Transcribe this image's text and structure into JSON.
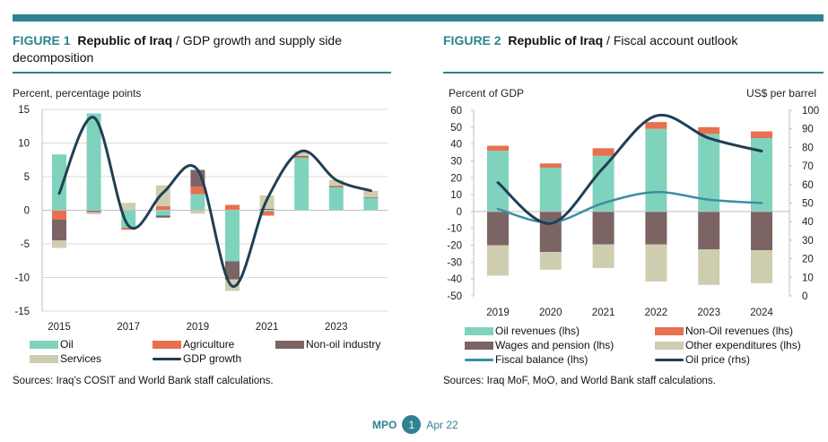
{
  "colors": {
    "accent": "#2e8291",
    "oil": "#7fd3bd",
    "agriculture": "#e8704f",
    "nonoil": "#7b6463",
    "services": "#cfcdb0",
    "gdp": "#1f3f55",
    "fiscal": "#3b8fa3",
    "oilprice": "#1f3f55"
  },
  "figure1": {
    "label": "FIGURE 1",
    "country": "Republic of Iraq",
    "title": "/ GDP growth and supply side decomposition",
    "source": "Sources: Iraq’s COSIT and World Bank staff calculations."
  },
  "figure2": {
    "label": "FIGURE 2",
    "country": "Republic of Iraq",
    "title": "/ Fiscal account outlook",
    "source": "Sources: Iraq MoF, MoO, and World Bank staff calculations."
  },
  "footer": {
    "brand": "MPO",
    "page": "1",
    "date": "Apr 22"
  },
  "chart_data": [
    {
      "type": "bar",
      "stacked": true,
      "ylabel": "Percent, percentage points",
      "ylim": [
        -15,
        15
      ],
      "yticks": [
        -15,
        -10,
        -5,
        0,
        5,
        10,
        15
      ],
      "grid": true,
      "legend": "bottom",
      "categories": [
        "2015",
        "2016",
        "2017",
        "2018",
        "2019",
        "2020",
        "2021",
        "2022",
        "2023",
        "2024"
      ],
      "xtick_labels": [
        "2015",
        "2017",
        "2019",
        "2021",
        "2023"
      ],
      "series": [
        {
          "name": "Oil",
          "kind": "bar",
          "color": "#7fd3bd",
          "values": [
            8.3,
            14.4,
            -2.6,
            -0.8,
            2.4,
            -7.6,
            -0.2,
            7.8,
            3.4,
            1.8
          ]
        },
        {
          "name": "Agriculture",
          "kind": "bar",
          "color": "#e8704f",
          "values": [
            -1.4,
            -0.1,
            -0.3,
            0.6,
            1.1,
            0.8,
            -0.6,
            0.2,
            0.1,
            0.0
          ]
        },
        {
          "name": "Non-oil industry",
          "kind": "bar",
          "color": "#7b6463",
          "values": [
            -3.1,
            -0.2,
            0.0,
            -0.3,
            2.5,
            -2.7,
            0.2,
            0.1,
            0.1,
            0.1
          ]
        },
        {
          "name": "Services",
          "kind": "bar",
          "color": "#cfcdb0",
          "values": [
            -1.1,
            -0.3,
            1.1,
            3.1,
            -0.5,
            -1.7,
            2.0,
            0.7,
            0.9,
            1.0
          ]
        },
        {
          "name": "GDP growth",
          "kind": "line",
          "color": "#1f3f55",
          "values": [
            2.5,
            13.8,
            -2.3,
            2.6,
            6.0,
            -11.3,
            1.6,
            8.8,
            4.5,
            2.9
          ]
        }
      ]
    },
    {
      "type": "bar",
      "stacked": true,
      "ylabel": "Percent of GDP",
      "y2label": "US$ per barrel",
      "ylim": [
        -50,
        60
      ],
      "y2lim": [
        0,
        100
      ],
      "yticks": [
        -50,
        -40,
        -30,
        -20,
        -10,
        0,
        10,
        20,
        30,
        40,
        50,
        60
      ],
      "y2ticks": [
        0,
        10,
        20,
        30,
        40,
        50,
        60,
        70,
        80,
        90,
        100
      ],
      "grid": false,
      "legend": "bottom",
      "categories": [
        "2019",
        "2020",
        "2021",
        "2022",
        "2023",
        "2024"
      ],
      "series": [
        {
          "name": "Oil revenues (lhs)",
          "kind": "bar",
          "color": "#7fd3bd",
          "values": [
            36,
            26,
            33,
            49,
            46,
            43.5
          ]
        },
        {
          "name": "Non-Oil revenues (lhs)",
          "kind": "bar",
          "color": "#e8704f",
          "values": [
            3,
            2.5,
            4.5,
            4,
            4,
            4
          ]
        },
        {
          "name": "Wages and pension (lhs)",
          "kind": "bar",
          "color": "#7b6463",
          "values": [
            -20,
            -24,
            -19.5,
            -19.5,
            -22.5,
            -23
          ]
        },
        {
          "name": "Other expenditures (lhs)",
          "kind": "bar",
          "color": "#cfcdb0",
          "values": [
            -18,
            -10.5,
            -14,
            -22,
            -21,
            -19.5
          ]
        },
        {
          "name": "Fiscal balance (lhs)",
          "kind": "line",
          "axis": "lhs",
          "color": "#3b8fa3",
          "values": [
            1.5,
            -6.5,
            5,
            11.5,
            7,
            5
          ]
        },
        {
          "name": "Oil price (rhs)",
          "kind": "line",
          "axis": "rhs",
          "color": "#1f3f55",
          "values": [
            61,
            39,
            69,
            97,
            85,
            78
          ]
        }
      ]
    }
  ]
}
